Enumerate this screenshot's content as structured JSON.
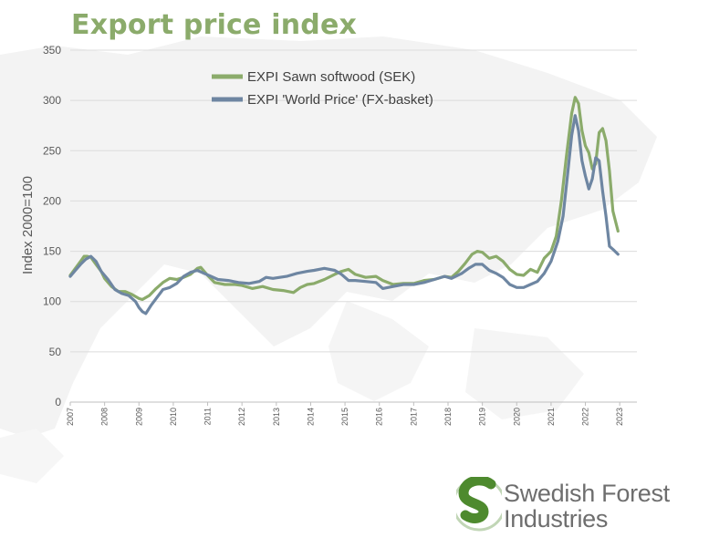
{
  "title": "Export price index",
  "colors": {
    "title": "#8bab6b",
    "softwood": "#8bab6b",
    "world": "#6e86a2",
    "grid": "#dcdcdc",
    "logo_green": "#4e8a2e"
  },
  "logo": {
    "line1": "Swedish Forest",
    "line2": "Industries"
  },
  "chart_data": {
    "type": "line",
    "ylabel": "Index 2000=100",
    "xlabel": "",
    "ylim": [
      0,
      350
    ],
    "yticks": [
      "0",
      "50",
      "100",
      "150",
      "200",
      "250",
      "300",
      "350"
    ],
    "xlim": [
      2007.0,
      2023.5
    ],
    "xticks": [
      "2007",
      "2008",
      "2009",
      "2010",
      "2011",
      "2012",
      "2013",
      "2014",
      "2015",
      "2016",
      "2017",
      "2018",
      "2019",
      "2020",
      "2021",
      "2022",
      "2023"
    ],
    "grid": "horizontal",
    "legend_position": "top-center",
    "series": [
      {
        "name": "EXPI Sawn softwood (SEK)",
        "color": "#8bab6b",
        "x": [
          2007.0,
          2007.15,
          2007.3,
          2007.4,
          2007.5,
          2007.6,
          2007.75,
          2007.9,
          2008.0,
          2008.2,
          2008.4,
          2008.6,
          2008.8,
          2009.0,
          2009.1,
          2009.3,
          2009.5,
          2009.7,
          2009.9,
          2010.1,
          2010.3,
          2010.5,
          2010.7,
          2010.8,
          2011.0,
          2011.2,
          2011.5,
          2011.8,
          2012.0,
          2012.3,
          2012.6,
          2012.9,
          2013.2,
          2013.5,
          2013.7,
          2013.9,
          2014.1,
          2014.4,
          2014.7,
          2014.9,
          2015.1,
          2015.3,
          2015.6,
          2015.9,
          2016.1,
          2016.4,
          2016.7,
          2017.0,
          2017.3,
          2017.6,
          2017.9,
          2018.1,
          2018.3,
          2018.5,
          2018.7,
          2018.85,
          2019.0,
          2019.2,
          2019.4,
          2019.6,
          2019.8,
          2020.0,
          2020.2,
          2020.4,
          2020.6,
          2020.8,
          2021.0,
          2021.15,
          2021.3,
          2021.45,
          2021.6,
          2021.7,
          2021.8,
          2021.9,
          2022.0,
          2022.1,
          2022.2,
          2022.3,
          2022.4,
          2022.5,
          2022.6,
          2022.7,
          2022.8,
          2022.95
        ],
        "values": [
          126,
          133,
          140,
          145,
          145,
          144,
          137,
          130,
          123,
          115,
          110,
          110,
          107,
          103,
          102,
          106,
          113,
          119,
          123,
          122,
          124,
          127,
          133,
          134,
          126,
          119,
          117,
          117,
          116,
          113,
          115,
          112,
          111,
          109,
          114,
          117,
          118,
          122,
          127,
          130,
          132,
          127,
          124,
          125,
          121,
          117,
          118,
          118,
          121,
          122,
          125,
          124,
          130,
          138,
          147,
          150,
          149,
          143,
          145,
          140,
          132,
          127,
          126,
          132,
          129,
          143,
          150,
          165,
          200,
          245,
          287,
          303,
          297,
          270,
          255,
          248,
          232,
          237,
          268,
          272,
          260,
          230,
          190,
          170
        ]
      },
      {
        "name": "EXPI 'World Price' (FX-basket)",
        "color": "#6e86a2",
        "x": [
          2007.0,
          2007.15,
          2007.3,
          2007.45,
          2007.6,
          2007.75,
          2007.9,
          2008.1,
          2008.3,
          2008.5,
          2008.7,
          2008.9,
          2009.0,
          2009.1,
          2009.2,
          2009.35,
          2009.5,
          2009.7,
          2009.9,
          2010.1,
          2010.3,
          2010.5,
          2010.7,
          2010.9,
          2011.1,
          2011.3,
          2011.6,
          2011.9,
          2012.2,
          2012.5,
          2012.7,
          2012.9,
          2013.1,
          2013.3,
          2013.6,
          2013.9,
          2014.1,
          2014.4,
          2014.7,
          2014.9,
          2015.1,
          2015.3,
          2015.6,
          2015.9,
          2016.1,
          2016.4,
          2016.7,
          2017.0,
          2017.3,
          2017.6,
          2017.9,
          2018.1,
          2018.4,
          2018.6,
          2018.8,
          2019.0,
          2019.2,
          2019.4,
          2019.6,
          2019.8,
          2020.0,
          2020.2,
          2020.4,
          2020.6,
          2020.8,
          2021.0,
          2021.2,
          2021.35,
          2021.5,
          2021.6,
          2021.7,
          2021.8,
          2021.9,
          2022.0,
          2022.1,
          2022.2,
          2022.3,
          2022.4,
          2022.5,
          2022.6,
          2022.7,
          2022.8,
          2022.95
        ],
        "values": [
          125,
          131,
          137,
          142,
          145,
          140,
          130,
          122,
          112,
          108,
          106,
          100,
          94,
          90,
          88,
          96,
          103,
          112,
          114,
          118,
          125,
          129,
          131,
          128,
          125,
          122,
          121,
          119,
          118,
          120,
          124,
          123,
          124,
          125,
          128,
          130,
          131,
          133,
          131,
          127,
          121,
          121,
          120,
          119,
          113,
          115,
          117,
          117,
          119,
          122,
          125,
          123,
          128,
          133,
          137,
          137,
          131,
          128,
          124,
          117,
          114,
          114,
          117,
          120,
          128,
          140,
          160,
          185,
          232,
          265,
          285,
          270,
          240,
          225,
          212,
          222,
          243,
          240,
          210,
          185,
          155,
          152,
          147
        ]
      }
    ]
  }
}
